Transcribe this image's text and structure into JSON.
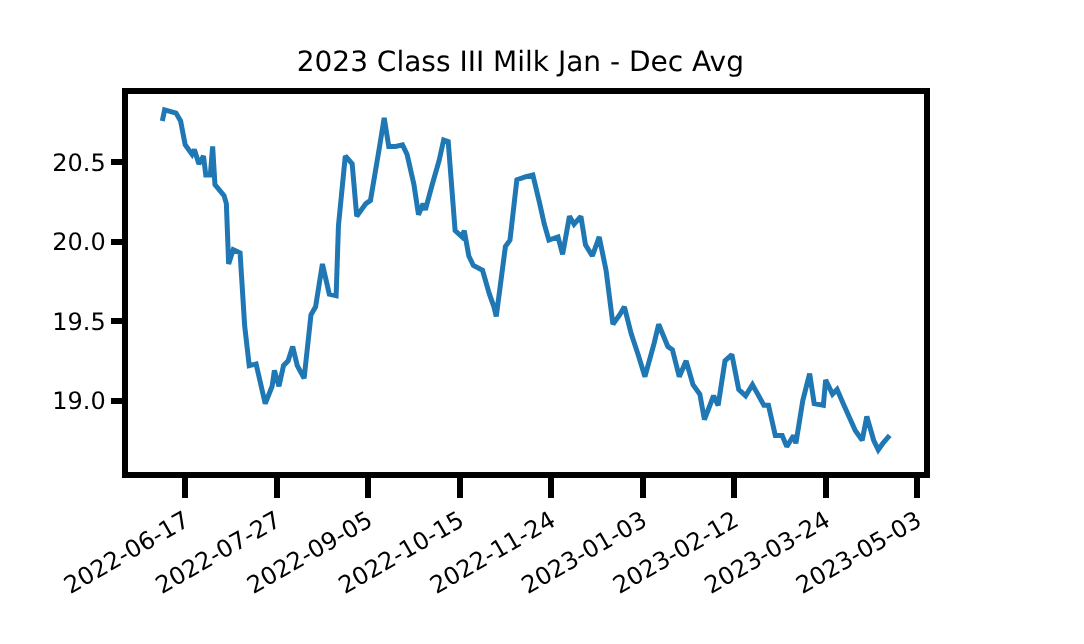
{
  "chart_data": {
    "type": "line",
    "title": "2023 Class III Milk Jan - Dec Avg",
    "x": [
      "2022-06-07",
      "2022-06-08",
      "2022-06-13",
      "2022-06-15",
      "2022-06-17",
      "2022-06-20",
      "2022-06-21",
      "2022-06-23",
      "2022-06-25",
      "2022-06-26",
      "2022-06-28",
      "2022-06-29",
      "2022-06-30",
      "2022-07-04",
      "2022-07-05",
      "2022-07-06",
      "2022-07-08",
      "2022-07-11",
      "2022-07-13",
      "2022-07-15",
      "2022-07-18",
      "2022-07-22",
      "2022-07-25",
      "2022-07-26",
      "2022-07-28",
      "2022-07-30",
      "2022-08-01",
      "2022-08-03",
      "2022-08-05",
      "2022-08-08",
      "2022-08-11",
      "2022-08-13",
      "2022-08-16",
      "2022-08-19",
      "2022-08-22",
      "2022-08-23",
      "2022-08-26",
      "2022-08-29",
      "2022-08-31",
      "2022-09-04",
      "2022-09-06",
      "2022-09-10",
      "2022-09-12",
      "2022-09-14",
      "2022-09-17",
      "2022-09-20",
      "2022-09-22",
      "2022-09-25",
      "2022-09-27",
      "2022-09-29",
      "2022-09-30",
      "2022-10-03",
      "2022-10-06",
      "2022-10-08",
      "2022-10-10",
      "2022-10-13",
      "2022-10-16",
      "2022-10-17",
      "2022-10-19",
      "2022-10-21",
      "2022-10-25",
      "2022-10-28",
      "2022-10-30",
      "2022-10-31",
      "2022-11-04",
      "2022-11-06",
      "2022-11-09",
      "2022-11-13",
      "2022-11-16",
      "2022-11-19",
      "2022-11-21",
      "2022-11-23",
      "2022-11-27",
      "2022-11-29",
      "2022-12-02",
      "2022-12-04",
      "2022-12-07",
      "2022-12-09",
      "2022-12-12",
      "2022-12-15",
      "2022-12-18",
      "2022-12-21",
      "2022-12-24",
      "2022-12-26",
      "2022-12-29",
      "2023-01-01",
      "2023-01-04",
      "2023-01-08",
      "2023-01-10",
      "2023-01-14",
      "2023-01-16",
      "2023-01-19",
      "2023-01-22",
      "2023-01-25",
      "2023-01-28",
      "2023-01-30",
      "2023-02-03",
      "2023-02-05",
      "2023-02-08",
      "2023-02-11",
      "2023-02-14",
      "2023-02-17",
      "2023-02-20",
      "2023-02-25",
      "2023-02-27",
      "2023-03-02",
      "2023-03-05",
      "2023-03-07",
      "2023-03-10",
      "2023-03-11",
      "2023-03-14",
      "2023-03-17",
      "2023-03-19",
      "2023-03-23",
      "2023-03-24",
      "2023-03-27",
      "2023-03-29",
      "2023-04-01",
      "2023-04-06",
      "2023-04-09",
      "2023-04-11",
      "2023-04-14",
      "2023-04-16",
      "2023-04-18",
      "2023-04-21"
    ],
    "series": [
      {
        "color": "#1f77b4",
        "values": [
          20.76,
          20.83,
          20.81,
          20.76,
          20.61,
          20.55,
          20.58,
          20.49,
          20.54,
          20.42,
          20.42,
          20.6,
          20.36,
          20.29,
          20.24,
          19.86,
          19.95,
          19.93,
          19.47,
          19.22,
          19.23,
          18.98,
          19.09,
          19.19,
          19.09,
          19.22,
          19.25,
          19.34,
          19.22,
          19.14,
          19.54,
          19.59,
          19.86,
          19.67,
          19.66,
          20.1,
          20.54,
          20.49,
          20.16,
          20.24,
          20.26,
          20.6,
          20.78,
          20.6,
          20.6,
          20.61,
          20.55,
          20.36,
          20.17,
          20.24,
          20.2,
          20.36,
          20.51,
          20.64,
          20.63,
          20.07,
          20.03,
          20.07,
          19.91,
          19.85,
          19.82,
          19.67,
          19.59,
          19.53,
          19.97,
          20.01,
          20.39,
          20.41,
          20.42,
          20.24,
          20.11,
          20.01,
          20.03,
          19.92,
          20.16,
          20.11,
          20.16,
          19.98,
          19.91,
          20.03,
          19.82,
          19.48,
          19.54,
          19.59,
          19.42,
          19.29,
          19.15,
          19.36,
          19.48,
          19.34,
          19.32,
          19.15,
          19.25,
          19.1,
          19.04,
          18.88,
          19.03,
          18.97,
          19.25,
          19.29,
          19.07,
          19.03,
          19.1,
          18.97,
          18.97,
          18.78,
          18.78,
          18.71,
          18.78,
          18.73,
          19.0,
          19.17,
          18.98,
          18.97,
          19.13,
          19.04,
          19.07,
          18.97,
          18.81,
          18.75,
          18.9,
          18.75,
          18.69,
          18.73,
          18.78
        ]
      }
    ],
    "xlim": [
      "2022-05-23",
      "2023-05-06"
    ],
    "xticks": [
      "2022-06-17",
      "2022-07-27",
      "2022-09-05",
      "2022-10-15",
      "2022-11-24",
      "2023-01-03",
      "2023-02-12",
      "2023-03-24",
      "2023-05-03"
    ],
    "ylim": [
      18.55,
      20.93
    ],
    "yticks": [
      {
        "value": 19,
        "label": "19.0"
      },
      {
        "value": 19.5,
        "label": "19.5"
      },
      {
        "value": 20,
        "label": "20.0"
      },
      {
        "value": 20.5,
        "label": "20.5"
      }
    ],
    "grid": false,
    "marker": "none",
    "line_style": "solid"
  }
}
